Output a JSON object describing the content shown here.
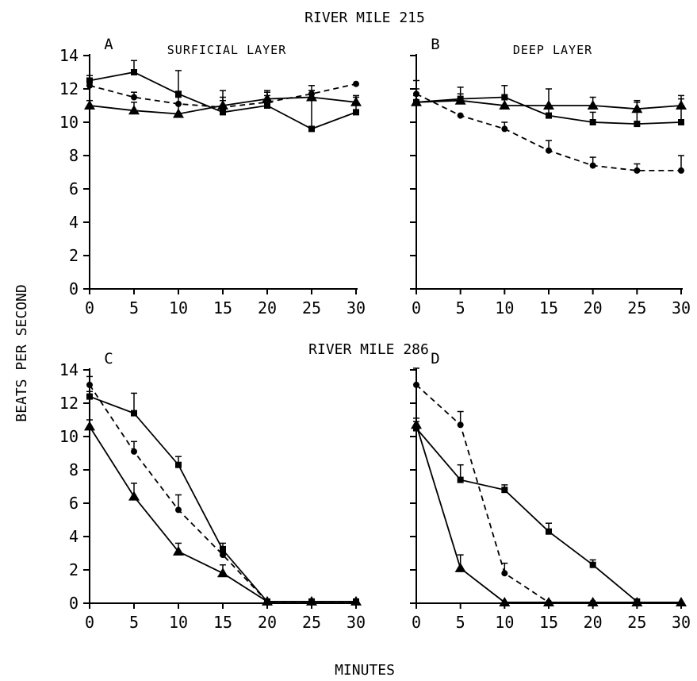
{
  "figure": {
    "ylabel": "BEATS PER SECOND",
    "xlabel": "MINUTES",
    "top_title": "RIVER MILE 215",
    "bottom_title": "RIVER MILE 286"
  },
  "chart_data": [
    {
      "type": "line",
      "panel": "A",
      "subtitle": "SURFICIAL LAYER",
      "x": [
        0,
        5,
        10,
        15,
        20,
        25,
        30
      ],
      "xlim": [
        0,
        30
      ],
      "ylim": [
        0,
        14
      ],
      "xticks": [
        0,
        5,
        10,
        15,
        20,
        25,
        30
      ],
      "yticks": [
        0,
        2,
        4,
        6,
        8,
        10,
        12,
        14
      ],
      "grid": false,
      "series": [
        {
          "marker": "square",
          "line": "solid",
          "values": [
            12.5,
            13.0,
            11.7,
            10.6,
            11.0,
            9.6,
            10.6
          ],
          "errors": [
            0.3,
            0.7,
            1.4,
            1.3,
            0.8,
            2.3,
            1.0
          ]
        },
        {
          "marker": "circle",
          "line": "dashed",
          "values": [
            12.2,
            11.5,
            11.1,
            10.9,
            11.2,
            11.7,
            12.3
          ],
          "errors": [
            0.4,
            0.3,
            0.4,
            0.4,
            0.4,
            0.5,
            0
          ]
        },
        {
          "marker": "triangle",
          "line": "solid",
          "values": [
            11.0,
            10.7,
            10.5,
            11.0,
            11.4,
            11.5,
            11.2
          ],
          "errors": [
            0.3,
            0.5,
            0.6,
            0.5,
            0.5,
            0.4,
            0.3
          ]
        }
      ]
    },
    {
      "type": "line",
      "panel": "B",
      "subtitle": "DEEP LAYER",
      "x": [
        0,
        5,
        10,
        15,
        20,
        25,
        30
      ],
      "xlim": [
        0,
        30
      ],
      "ylim": [
        0,
        14
      ],
      "xticks": [
        0,
        5,
        10,
        15,
        20,
        25,
        30
      ],
      "yticks": [
        0,
        2,
        4,
        6,
        8,
        10,
        12,
        14
      ],
      "grid": false,
      "series": [
        {
          "marker": "square",
          "line": "solid",
          "values": [
            11.2,
            11.4,
            11.5,
            10.4,
            10.0,
            9.9,
            10.0
          ],
          "errors": [
            1.3,
            0.7,
            0.7,
            0.5,
            0.6,
            1.3,
            1.4
          ]
        },
        {
          "marker": "circle",
          "line": "dashed",
          "values": [
            11.7,
            10.4,
            9.6,
            8.3,
            7.4,
            7.1,
            7.1
          ],
          "errors": [
            0.3,
            0,
            0.4,
            0.6,
            0.5,
            0.4,
            0.9
          ]
        },
        {
          "marker": "triangle",
          "line": "solid",
          "values": [
            11.2,
            11.3,
            11.0,
            11.0,
            11.0,
            10.8,
            11.0
          ],
          "errors": [
            0.4,
            0.4,
            0.5,
            1.0,
            0.5,
            0.5,
            0.6
          ]
        }
      ]
    },
    {
      "type": "line",
      "panel": "C",
      "subtitle": "",
      "x": [
        0,
        5,
        10,
        15,
        20,
        25,
        30
      ],
      "xlim": [
        0,
        30
      ],
      "ylim": [
        0,
        14
      ],
      "xticks": [
        0,
        5,
        10,
        15,
        20,
        25,
        30
      ],
      "yticks": [
        0,
        2,
        4,
        6,
        8,
        10,
        12,
        14
      ],
      "grid": false,
      "series": [
        {
          "marker": "square",
          "line": "solid",
          "values": [
            12.4,
            11.4,
            8.3,
            3.2,
            0.1,
            0.1,
            0.1
          ],
          "errors": [
            0.3,
            1.2,
            0.5,
            0.4,
            0,
            0,
            0
          ]
        },
        {
          "marker": "circle",
          "line": "dashed",
          "values": [
            13.1,
            9.1,
            5.6,
            2.9,
            0.1,
            0.1,
            0.1
          ],
          "errors": [
            0.5,
            0.6,
            0.9,
            0.5,
            0,
            0,
            0
          ]
        },
        {
          "marker": "triangle",
          "line": "solid",
          "values": [
            10.6,
            6.4,
            3.1,
            1.8,
            0.1,
            0.1,
            0.1
          ],
          "errors": [
            0.4,
            0.8,
            0.5,
            0.5,
            0,
            0,
            0
          ]
        }
      ]
    },
    {
      "type": "line",
      "panel": "D",
      "subtitle": "",
      "x": [
        0,
        5,
        10,
        15,
        20,
        25,
        30
      ],
      "xlim": [
        0,
        30
      ],
      "ylim": [
        0,
        14
      ],
      "xticks": [
        0,
        5,
        10,
        15,
        20,
        25,
        30
      ],
      "yticks": [
        0,
        2,
        4,
        6,
        8,
        10,
        12,
        14
      ],
      "grid": false,
      "series": [
        {
          "marker": "square",
          "line": "solid",
          "x": [
            0,
            5,
            10,
            15,
            20,
            25
          ],
          "values": [
            10.5,
            7.4,
            6.8,
            4.3,
            2.3,
            0.1
          ],
          "errors": [
            0.4,
            0.9,
            0.3,
            0.5,
            0.3,
            0
          ]
        },
        {
          "marker": "circle",
          "line": "dashed",
          "x": [
            0,
            5,
            10,
            15,
            20,
            25
          ],
          "values": [
            13.1,
            10.7,
            1.8,
            0.05,
            0.05,
            0.05
          ],
          "errors": [
            1.0,
            0.8,
            0.6,
            0,
            0,
            0
          ]
        },
        {
          "marker": "triangle",
          "line": "solid",
          "x": [
            0,
            5,
            10,
            15,
            20,
            25,
            30
          ],
          "values": [
            10.7,
            2.1,
            0.05,
            0.05,
            0.05,
            0.05,
            0.05
          ],
          "errors": [
            0.4,
            0.8,
            0,
            0,
            0,
            0,
            0
          ]
        }
      ]
    }
  ]
}
